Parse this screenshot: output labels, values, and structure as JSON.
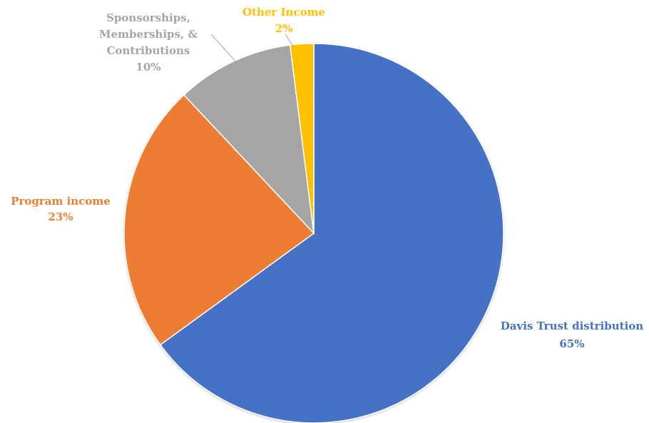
{
  "chart_data": {
    "type": "pie",
    "title": "",
    "start_angle_deg": 0,
    "direction": "clockwise",
    "slices": [
      {
        "label": "Davis Trust distribution",
        "value": 65,
        "value_label": "65%",
        "color": "#4472C4",
        "label_lines": [
          "Davis Trust distribution"
        ]
      },
      {
        "label": "Program income",
        "value": 23,
        "value_label": "23%",
        "color": "#ED7D31",
        "label_lines": [
          "Program income"
        ]
      },
      {
        "label": "Sponsorships, Memberships, & Contributions",
        "value": 10,
        "value_label": "10%",
        "color": "#A5A5A5",
        "label_lines": [
          "Sponsorships,",
          "Memberships, &",
          "Contributions"
        ]
      },
      {
        "label": "Other Income",
        "value": 2,
        "value_label": "2%",
        "color": "#FFC000",
        "label_lines": [
          "Other Income"
        ]
      }
    ],
    "legend": "none",
    "data_labels": "outside, category name and percentage"
  }
}
